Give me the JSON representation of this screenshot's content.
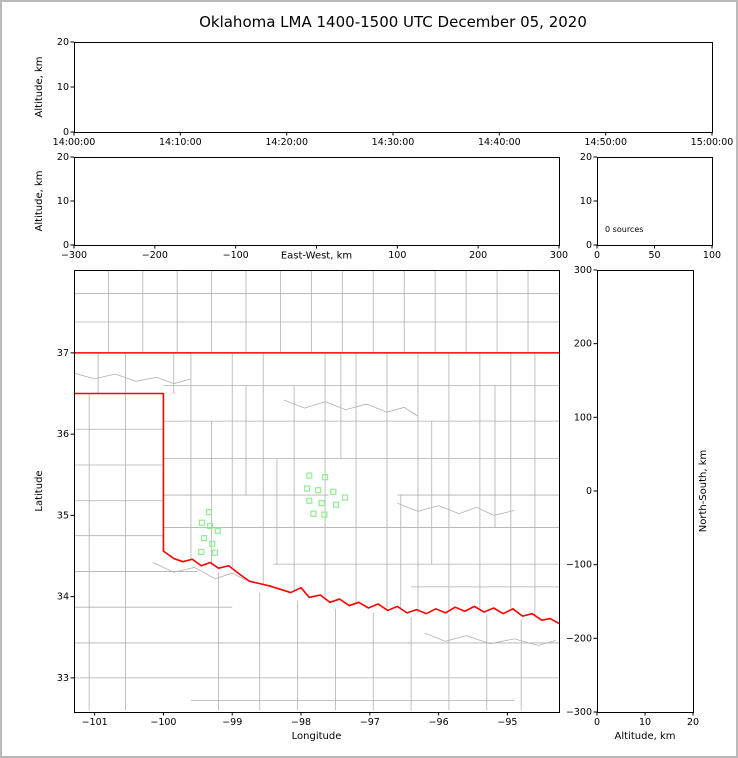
{
  "title": "Oklahoma LMA 1400-1500 UTC December 05, 2020",
  "colors": {
    "axis": "#000000",
    "county": "#b0b0b0",
    "state_border": "#ff0000",
    "station": "#90ee90",
    "background": "#ffffff",
    "frame": "#b9b9b9"
  },
  "chart_data": [
    {
      "id": "time_height",
      "type": "scatter",
      "description": "altitude vs time panel (no sources plotted)",
      "xlim": [
        0,
        3600
      ],
      "ylim": [
        0,
        20
      ],
      "xticks": [
        {
          "v": 0,
          "label": "14:00:00"
        },
        {
          "v": 600,
          "label": "14:10:00"
        },
        {
          "v": 1200,
          "label": "14:20:00"
        },
        {
          "v": 1800,
          "label": "14:30:00"
        },
        {
          "v": 2400,
          "label": "14:40:00"
        },
        {
          "v": 3000,
          "label": "14:50:00"
        },
        {
          "v": 3600,
          "label": "15:00:00"
        }
      ],
      "yticks": [
        {
          "v": 0,
          "label": "0"
        },
        {
          "v": 10,
          "label": "10"
        },
        {
          "v": 20,
          "label": "20"
        }
      ],
      "xlabel": "",
      "ylabel": "Altitude, km",
      "points": []
    },
    {
      "id": "ew_height",
      "type": "scatter",
      "description": "altitude vs east-west distance panel (no sources plotted)",
      "xlim": [
        -300,
        300
      ],
      "ylim": [
        0,
        20
      ],
      "xticks": [
        {
          "v": -300,
          "label": "−300"
        },
        {
          "v": -200,
          "label": "−200"
        },
        {
          "v": -100,
          "label": "−100"
        },
        {
          "v": 0,
          "label": ""
        },
        {
          "v": 100,
          "label": "100"
        },
        {
          "v": 200,
          "label": "200"
        },
        {
          "v": 300,
          "label": "300"
        }
      ],
      "yticks": [
        {
          "v": 0,
          "label": "0"
        },
        {
          "v": 10,
          "label": "10"
        },
        {
          "v": 20,
          "label": "20"
        }
      ],
      "xlabel": "East-West, km",
      "ylabel": "Altitude, km",
      "points": []
    },
    {
      "id": "alt_histogram",
      "type": "line",
      "description": "source count vs altitude histogram panel",
      "xlim": [
        0,
        100
      ],
      "ylim": [
        0,
        20
      ],
      "xticks": [
        {
          "v": 0,
          "label": "0"
        },
        {
          "v": 50,
          "label": "50"
        },
        {
          "v": 100,
          "label": "100"
        }
      ],
      "yticks": [
        {
          "v": 0,
          "label": "0"
        },
        {
          "v": 10,
          "label": "10"
        },
        {
          "v": 20,
          "label": "20"
        }
      ],
      "xlabel": "",
      "ylabel": "",
      "annotation": {
        "text": "0 sources",
        "fx": 0.07,
        "fy": 0.85
      },
      "points": []
    },
    {
      "id": "plan_map",
      "type": "scatter",
      "description": "plan-view map with state/county borders and LMA station squares",
      "xlim": [
        -101.3,
        -94.25
      ],
      "ylim": [
        32.58,
        38.02
      ],
      "xticks": [
        {
          "v": -101,
          "label": "−101"
        },
        {
          "v": -100,
          "label": "−100"
        },
        {
          "v": -99,
          "label": "−99"
        },
        {
          "v": -98,
          "label": "−98"
        },
        {
          "v": -97,
          "label": "−97"
        },
        {
          "v": -96,
          "label": "−96"
        },
        {
          "v": -95,
          "label": "−95"
        }
      ],
      "yticks": [
        {
          "v": 33,
          "label": "33"
        },
        {
          "v": 34,
          "label": "34"
        },
        {
          "v": 35,
          "label": "35"
        },
        {
          "v": 36,
          "label": "36"
        },
        {
          "v": 37,
          "label": "37"
        }
      ],
      "xlabel": "Longitude",
      "ylabel": "Latitude",
      "stations": [
        [
          -99.34,
          35.04
        ],
        [
          -99.44,
          34.91
        ],
        [
          -99.32,
          34.87
        ],
        [
          -99.21,
          34.81
        ],
        [
          -99.41,
          34.72
        ],
        [
          -99.29,
          34.65
        ],
        [
          -99.45,
          34.55
        ],
        [
          -99.25,
          34.54
        ],
        [
          -97.88,
          35.49
        ],
        [
          -97.65,
          35.47
        ],
        [
          -97.91,
          35.33
        ],
        [
          -97.75,
          35.31
        ],
        [
          -97.53,
          35.29
        ],
        [
          -97.36,
          35.22
        ],
        [
          -97.88,
          35.18
        ],
        [
          -97.7,
          35.15
        ],
        [
          -97.49,
          35.13
        ],
        [
          -97.82,
          35.02
        ],
        [
          -97.66,
          35.01
        ]
      ],
      "state_lines": [
        [
          [
            -101.3,
            37
          ],
          [
            -94.25,
            37
          ]
        ],
        [
          [
            -101.3,
            36.5
          ],
          [
            -100,
            36.5
          ],
          [
            -100,
            34.56
          ],
          [
            -99.85,
            34.47
          ],
          [
            -99.72,
            34.43
          ],
          [
            -99.58,
            34.46
          ],
          [
            -99.45,
            34.38
          ],
          [
            -99.32,
            34.42
          ],
          [
            -99.2,
            34.35
          ],
          [
            -99.05,
            34.38
          ],
          [
            -98.9,
            34.28
          ],
          [
            -98.75,
            34.19
          ],
          [
            -98.6,
            34.16
          ],
          [
            -98.45,
            34.13
          ],
          [
            -98.3,
            34.09
          ],
          [
            -98.15,
            34.05
          ],
          [
            -98.0,
            34.11
          ],
          [
            -97.88,
            33.99
          ],
          [
            -97.72,
            34.02
          ],
          [
            -97.58,
            33.93
          ],
          [
            -97.44,
            33.97
          ],
          [
            -97.3,
            33.89
          ],
          [
            -97.16,
            33.93
          ],
          [
            -97.02,
            33.86
          ],
          [
            -96.88,
            33.91
          ],
          [
            -96.74,
            33.83
          ],
          [
            -96.6,
            33.88
          ],
          [
            -96.46,
            33.8
          ],
          [
            -96.32,
            33.84
          ],
          [
            -96.18,
            33.79
          ],
          [
            -96.04,
            33.85
          ],
          [
            -95.9,
            33.8
          ],
          [
            -95.76,
            33.87
          ],
          [
            -95.62,
            33.82
          ],
          [
            -95.48,
            33.88
          ],
          [
            -95.34,
            33.81
          ],
          [
            -95.2,
            33.86
          ],
          [
            -95.06,
            33.79
          ],
          [
            -94.92,
            33.85
          ],
          [
            -94.78,
            33.76
          ],
          [
            -94.64,
            33.79
          ],
          [
            -94.5,
            33.71
          ],
          [
            -94.38,
            33.73
          ],
          [
            -94.25,
            33.67
          ]
        ]
      ],
      "county_segments": [
        [
          -100.8,
          37,
          -100.8,
          38.02
        ],
        [
          -100.3,
          37,
          -100.3,
          38.02
        ],
        [
          -99.8,
          37,
          -99.8,
          38.02
        ],
        [
          -99.3,
          37,
          -99.3,
          38.02
        ],
        [
          -98.8,
          37,
          -98.8,
          38.02
        ],
        [
          -98.3,
          37,
          -98.3,
          38.02
        ],
        [
          -97.85,
          37,
          -97.85,
          38.02
        ],
        [
          -97.4,
          37,
          -97.4,
          38.02
        ],
        [
          -96.95,
          37,
          -96.95,
          38.02
        ],
        [
          -96.5,
          37,
          -96.5,
          38.02
        ],
        [
          -96.05,
          37,
          -96.05,
          38.02
        ],
        [
          -95.6,
          37,
          -95.6,
          38.02
        ],
        [
          -95.15,
          37,
          -95.15,
          38.02
        ],
        [
          -94.7,
          37,
          -94.7,
          38.02
        ],
        [
          -101.3,
          37.73,
          -94.25,
          37.73
        ],
        [
          -101.3,
          37.38,
          -94.25,
          37.38
        ],
        [
          -100.55,
          36.5,
          -100.55,
          37
        ],
        [
          -100.95,
          36.5,
          -100.95,
          37
        ],
        [
          -101.08,
          32.6,
          -101.08,
          36.5
        ],
        [
          -100.55,
          32.6,
          -100.55,
          36.5
        ],
        [
          -101.3,
          36.06,
          -100,
          36.06
        ],
        [
          -101.3,
          35.62,
          -100,
          35.62
        ],
        [
          -101.3,
          35.18,
          -100,
          35.18
        ],
        [
          -101.3,
          34.75,
          -100,
          34.75
        ],
        [
          -101.3,
          34.31,
          -99.5,
          34.31
        ],
        [
          -101.3,
          33.87,
          -99.0,
          33.87
        ],
        [
          -101.3,
          33.43,
          -94.25,
          33.43
        ],
        [
          -101.3,
          33.0,
          -94.25,
          33.0
        ],
        [
          -99.6,
          32.72,
          -94.9,
          32.72
        ],
        [
          -99.6,
          34.45,
          -99.6,
          37
        ],
        [
          -99.0,
          34.36,
          -99.0,
          37
        ],
        [
          -98.55,
          34.15,
          -98.55,
          37
        ],
        [
          -98.1,
          34.06,
          -98.1,
          36.6
        ],
        [
          -97.65,
          33.97,
          -97.65,
          37
        ],
        [
          -97.2,
          33.9,
          -97.2,
          37
        ],
        [
          -96.75,
          33.85,
          -96.75,
          37
        ],
        [
          -96.3,
          33.8,
          -96.3,
          37
        ],
        [
          -95.85,
          33.84,
          -95.85,
          37
        ],
        [
          -95.4,
          33.83,
          -95.4,
          37
        ],
        [
          -94.95,
          33.82,
          -94.95,
          37
        ],
        [
          -94.6,
          33.76,
          -94.6,
          37
        ],
        [
          -99.3,
          34.4,
          -99.3,
          36.16
        ],
        [
          -98.8,
          35.25,
          -98.8,
          36.6
        ],
        [
          -97.42,
          35.7,
          -97.42,
          37
        ],
        [
          -96.1,
          34.4,
          -96.1,
          36.16
        ],
        [
          -95.18,
          34.85,
          -95.18,
          36.6
        ],
        [
          -96.55,
          33.85,
          -96.55,
          35.25
        ],
        [
          -98.35,
          34.4,
          -98.35,
          35.7
        ],
        [
          -99.85,
          36.5,
          -99.85,
          37
        ],
        [
          -100,
          36.6,
          -94.25,
          36.6
        ],
        [
          -100,
          36.16,
          -94.25,
          36.16
        ],
        [
          -100,
          35.7,
          -94.25,
          35.7
        ],
        [
          -100,
          35.25,
          -97.6,
          35.25
        ],
        [
          -96.6,
          35.25,
          -94.25,
          35.25
        ],
        [
          -100,
          34.85,
          -94.25,
          34.85
        ],
        [
          -98.4,
          34.4,
          -94.25,
          34.4
        ],
        [
          -96.4,
          34.12,
          -94.25,
          34.12
        ],
        [
          -99.2,
          32.6,
          -99.2,
          34.3
        ],
        [
          -98.6,
          32.6,
          -98.6,
          34.05
        ],
        [
          -98.05,
          32.6,
          -98.05,
          33.95
        ],
        [
          -97.5,
          32.6,
          -97.5,
          33.85
        ],
        [
          -96.95,
          32.6,
          -96.95,
          33.8
        ],
        [
          -96.4,
          32.6,
          -96.4,
          33.75
        ],
        [
          -95.85,
          32.6,
          -95.85,
          33.78
        ],
        [
          -95.3,
          32.6,
          -95.3,
          33.78
        ],
        [
          -94.8,
          32.6,
          -94.8,
          33.72
        ]
      ],
      "county_polylines": [
        [
          [
            -98.25,
            36.42
          ],
          [
            -97.95,
            36.32
          ],
          [
            -97.65,
            36.4
          ],
          [
            -97.35,
            36.3
          ],
          [
            -97.05,
            36.37
          ],
          [
            -96.75,
            36.27
          ],
          [
            -96.5,
            36.33
          ],
          [
            -96.3,
            36.22
          ]
        ],
        [
          [
            -100.15,
            34.42
          ],
          [
            -99.85,
            34.3
          ],
          [
            -99.55,
            34.36
          ],
          [
            -99.25,
            34.22
          ],
          [
            -99.0,
            34.29
          ],
          [
            -98.8,
            34.2
          ]
        ],
        [
          [
            -96.2,
            33.55
          ],
          [
            -95.9,
            33.45
          ],
          [
            -95.6,
            33.52
          ],
          [
            -95.25,
            33.42
          ],
          [
            -94.9,
            33.48
          ],
          [
            -94.55,
            33.4
          ],
          [
            -94.3,
            33.46
          ]
        ],
        [
          [
            -96.6,
            35.15
          ],
          [
            -96.3,
            35.05
          ],
          [
            -96.0,
            35.12
          ],
          [
            -95.7,
            35.02
          ],
          [
            -95.45,
            35.1
          ],
          [
            -95.2,
            35.0
          ],
          [
            -94.9,
            35.06
          ]
        ],
        [
          [
            -101.3,
            36.75
          ],
          [
            -101.0,
            36.68
          ],
          [
            -100.7,
            36.74
          ],
          [
            -100.4,
            36.65
          ],
          [
            -100.1,
            36.7
          ],
          [
            -99.85,
            36.62
          ],
          [
            -99.6,
            36.68
          ]
        ]
      ],
      "points": []
    },
    {
      "id": "ns_height",
      "type": "scatter",
      "description": "north-south distance vs altitude panel (no sources plotted)",
      "xlim": [
        0,
        20
      ],
      "ylim": [
        -300,
        300
      ],
      "xticks": [
        {
          "v": 0,
          "label": "0"
        },
        {
          "v": 10,
          "label": "10"
        },
        {
          "v": 20,
          "label": "20"
        }
      ],
      "yticks": [
        {
          "v": 300,
          "label": "300"
        },
        {
          "v": 200,
          "label": "200"
        },
        {
          "v": 100,
          "label": "100"
        },
        {
          "v": 0,
          "label": "0"
        },
        {
          "v": -100,
          "label": "−100"
        },
        {
          "v": -200,
          "label": "−200"
        },
        {
          "v": -300,
          "label": "−300"
        }
      ],
      "xlabel": "Altitude, km",
      "ylabel": "",
      "ylabel_right": "North-South, km",
      "points": []
    }
  ]
}
